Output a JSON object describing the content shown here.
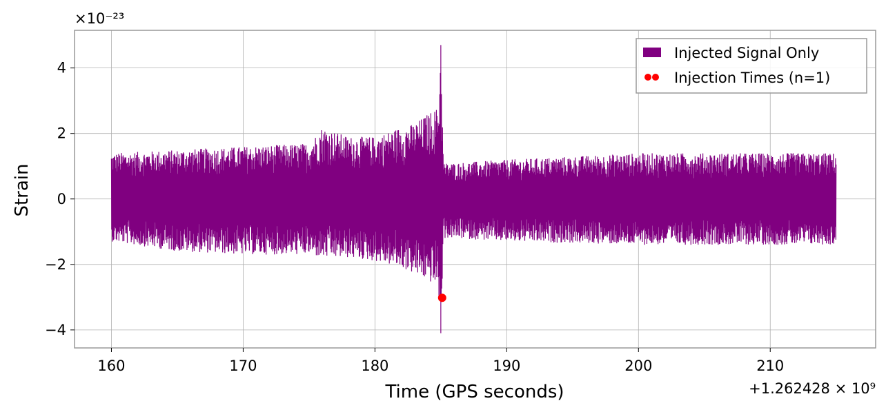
{
  "chart_data": {
    "type": "line",
    "xlabel": "Time (GPS seconds)",
    "ylabel": "Strain",
    "x_offset_label": "+1.262428 × 10⁹",
    "y_scale_label": "×10⁻²³",
    "xlim": [
      157.2,
      218.0
    ],
    "ylim": [
      -4.55,
      5.15
    ],
    "x_ticks": [
      160,
      170,
      180,
      190,
      200,
      210
    ],
    "x_tick_labels": [
      "160",
      "170",
      "180",
      "190",
      "200",
      "210"
    ],
    "y_ticks": [
      -4,
      -2,
      0,
      2,
      4
    ],
    "y_tick_labels": [
      "−4",
      "−2",
      "0",
      "2",
      "4"
    ],
    "grid": true,
    "legend_position": "top-right",
    "series": [
      {
        "name": "Injected Signal Only",
        "color": "#800080",
        "style": "line",
        "envelope": {
          "x": [
            160.0,
            165.0,
            170.0,
            175.0,
            176.0,
            178.0,
            180.0,
            182.0,
            183.0,
            184.0,
            184.8,
            185.0,
            185.2,
            186.0,
            190.0,
            200.0,
            210.0,
            215.0
          ],
          "upper": [
            1.4,
            1.5,
            1.6,
            1.7,
            2.2,
            1.9,
            1.9,
            2.2,
            2.3,
            2.6,
            2.8,
            4.7,
            1.1,
            1.1,
            1.2,
            1.4,
            1.4,
            1.4
          ],
          "lower": [
            -1.3,
            -1.6,
            -1.7,
            -1.7,
            -1.8,
            -1.8,
            -1.9,
            -2.1,
            -2.3,
            -2.5,
            -2.7,
            -4.1,
            -1.2,
            -1.2,
            -1.3,
            -1.4,
            -1.4,
            -1.4
          ]
        }
      },
      {
        "name": "Injection Times (n=1)",
        "color": "#ff0000",
        "style": "points",
        "x": [
          185.1
        ],
        "y": [
          -3.02
        ]
      }
    ]
  }
}
